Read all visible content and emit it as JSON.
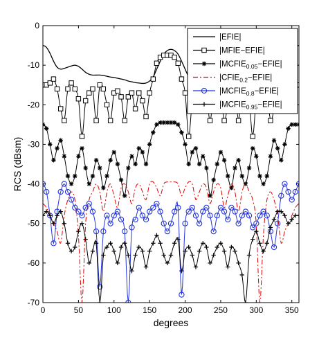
{
  "chart_data": {
    "type": "line",
    "xlabel": "degrees",
    "ylabel": "RCS (dBsm)",
    "xlim": [
      0,
      360
    ],
    "ylim": [
      -70,
      0
    ],
    "xticks": [
      "0",
      "50",
      "100",
      "150",
      "200",
      "250",
      "300",
      "350"
    ],
    "yticks": [
      "0",
      "-10",
      "-20",
      "-30",
      "-40",
      "-50",
      "-60",
      "-70"
    ],
    "grid": false,
    "legend_position": "top-right",
    "series": [
      {
        "name": "|EFIE|",
        "color": "#000000",
        "dash": "solid",
        "marker": "none",
        "x": [
          0,
          5,
          10,
          15,
          20,
          25,
          30,
          35,
          40,
          45,
          50,
          55,
          60,
          65,
          70,
          75,
          80,
          85,
          90,
          95,
          100,
          105,
          110,
          115,
          120,
          125,
          130,
          135,
          140,
          145,
          150,
          155,
          160,
          165,
          170,
          175,
          180,
          185,
          190,
          195,
          200,
          205,
          210,
          215,
          220,
          225,
          230,
          235,
          240,
          245,
          250,
          255,
          260,
          265,
          270,
          275,
          280,
          285,
          290,
          295,
          300,
          305,
          310,
          315,
          320,
          325,
          330,
          335,
          340,
          345,
          350,
          355,
          360
        ],
        "y": [
          -5,
          -5.5,
          -7,
          -9,
          -10.5,
          -11,
          -10.8,
          -10.5,
          -10.2,
          -10,
          -10.3,
          -11,
          -11.8,
          -12.3,
          -12.5,
          -12.5,
          -12.5,
          -12.6,
          -12.8,
          -13,
          -13.1,
          -13.3,
          -13.5,
          -13.7,
          -14,
          -14.2,
          -14.4,
          -14.5,
          -14.6,
          -14.5,
          -14,
          -13,
          -11,
          -9,
          -7.2,
          -6.3,
          -6,
          -6.3,
          -7.2,
          -9,
          -11,
          -13,
          -14,
          -14.5,
          -14.6,
          -14.5,
          -14.4,
          -14.2,
          -14,
          -13.7,
          -13.5,
          -13.3,
          -13.1,
          -13,
          -12.8,
          -12.6,
          -12.5,
          -12.5,
          -12.5,
          -12.3,
          -11.8,
          -11,
          -10.3,
          -10,
          -10.2,
          -10.5,
          -10.8,
          -11,
          -10.5,
          -9,
          -7,
          -5.5,
          -5
        ]
      },
      {
        "name": "|MFIE−EFIE|",
        "color": "#000000",
        "dash": "solid",
        "marker": "square",
        "x": [
          0,
          5,
          10,
          15,
          20,
          25,
          30,
          35,
          40,
          45,
          50,
          55,
          60,
          65,
          70,
          75,
          80,
          85,
          90,
          95,
          100,
          105,
          110,
          115,
          120,
          125,
          130,
          135,
          140,
          145,
          150,
          155,
          160,
          165,
          170,
          175,
          180,
          185,
          190,
          195,
          200,
          205,
          210,
          215,
          220,
          225,
          230,
          235,
          240,
          245,
          250,
          255,
          260,
          265,
          270,
          275,
          280,
          285,
          290,
          295,
          300,
          305,
          310,
          315,
          320,
          325,
          330,
          335,
          340,
          345,
          350,
          355,
          360
        ],
        "y": [
          -15,
          -15,
          -14.5,
          -13.5,
          -16,
          -21,
          -24,
          -16,
          -14.5,
          -16,
          -18.5,
          -28,
          -19,
          -17,
          -16,
          -24,
          -15,
          -16,
          -20,
          -24,
          -17,
          -16.5,
          -18,
          -24,
          -18,
          -17,
          -21,
          -17,
          -19,
          -23,
          -17,
          -13.5,
          -9.5,
          -8,
          -7.5,
          -7.5,
          -7.5,
          -8,
          -9.5,
          -13.5,
          -17,
          -28,
          -19,
          -17,
          -21,
          -17,
          -18,
          -24,
          -18,
          -16.5,
          -17,
          -24,
          -20,
          -16,
          -15,
          -24,
          -16,
          -17,
          -19,
          -28,
          -18.5,
          -16,
          -14.5,
          -16,
          -24,
          -21,
          -16,
          -13.5,
          -14.5,
          -15,
          -15,
          -15,
          -15
        ]
      },
      {
        "name": "|MCFIE",
        "name_sub": "0.05",
        "name_suffix": "−EFIE|",
        "color": "#000000",
        "dash": "solid",
        "marker": "star",
        "x": [
          0,
          5,
          10,
          15,
          20,
          25,
          30,
          35,
          40,
          45,
          50,
          55,
          60,
          65,
          70,
          75,
          80,
          85,
          90,
          95,
          100,
          105,
          110,
          115,
          120,
          125,
          130,
          135,
          140,
          145,
          150,
          155,
          160,
          165,
          170,
          175,
          180,
          185,
          190,
          195,
          200,
          205,
          210,
          215,
          220,
          225,
          230,
          235,
          240,
          245,
          250,
          255,
          260,
          265,
          270,
          275,
          280,
          285,
          290,
          295,
          300,
          305,
          310,
          315,
          320,
          325,
          330,
          335,
          340,
          345,
          350,
          355,
          360
        ],
        "y": [
          -25,
          -26,
          -30,
          -34,
          -31,
          -29,
          -33,
          -38,
          -40,
          -38,
          -33,
          -31,
          -36,
          -40,
          -38,
          -34,
          -36,
          -41,
          -38,
          -34,
          -32,
          -35,
          -39,
          -43,
          -36,
          -33,
          -35,
          -31,
          -32,
          -35,
          -30,
          -27,
          -25,
          -24.5,
          -24.5,
          -24.5,
          -24.5,
          -24.5,
          -25,
          -27,
          -30,
          -35,
          -32,
          -31,
          -35,
          -33,
          -36,
          -43,
          -39,
          -35,
          -32,
          -34,
          -38,
          -41,
          -36,
          -34,
          -38,
          -40,
          -36,
          -31,
          -33,
          -38,
          -40,
          -38,
          -33,
          -29,
          -31,
          -34,
          -30,
          -26,
          -25,
          -25,
          -25
        ]
      },
      {
        "name": "|CFIE",
        "name_sub": "0.2",
        "name_suffix": "−EFIE|",
        "color": "#dd0000",
        "dash": "dashdot",
        "marker": "none",
        "x": [
          0,
          5,
          10,
          15,
          20,
          25,
          30,
          35,
          40,
          45,
          50,
          55,
          60,
          65,
          70,
          75,
          80,
          85,
          90,
          95,
          100,
          105,
          110,
          115,
          120,
          125,
          130,
          135,
          140,
          145,
          150,
          155,
          160,
          165,
          170,
          175,
          180,
          185,
          190,
          195,
          200,
          205,
          210,
          215,
          220,
          225,
          230,
          235,
          240,
          245,
          250,
          255,
          260,
          265,
          270,
          275,
          280,
          285,
          290,
          295,
          300,
          305,
          310,
          315,
          320,
          325,
          330,
          335,
          340,
          345,
          350,
          355,
          360
        ],
        "y": [
          -45,
          -46,
          -48,
          -50,
          -52,
          -55,
          -48,
          -44,
          -42,
          -44,
          -53,
          -70,
          -50,
          -44,
          -42,
          -40,
          -42,
          -47,
          -42,
          -40,
          -43,
          -46,
          -41,
          -40,
          -42,
          -45,
          -41,
          -40,
          -42,
          -44,
          -40,
          -39.5,
          -41,
          -43,
          -40,
          -39.5,
          -39.5,
          -39.5,
          -40,
          -43,
          -41,
          -39.5,
          -40,
          -44,
          -42,
          -40,
          -41,
          -45,
          -42,
          -40,
          -41,
          -46,
          -43,
          -40,
          -42,
          -47,
          -42,
          -40,
          -42,
          -44,
          -50,
          -70,
          -53,
          -44,
          -42,
          -44,
          -48,
          -55,
          -52,
          -50,
          -48,
          -46,
          -45
        ]
      },
      {
        "name": "|MCFIE",
        "name_sub": "0.8",
        "name_suffix": "−EFIE|",
        "color": "#2233dd",
        "dash": "solid",
        "marker": "circle",
        "x": [
          0,
          5,
          10,
          15,
          20,
          25,
          30,
          35,
          40,
          45,
          50,
          55,
          60,
          65,
          70,
          75,
          80,
          85,
          90,
          95,
          100,
          105,
          110,
          115,
          120,
          125,
          130,
          135,
          140,
          145,
          150,
          155,
          160,
          165,
          170,
          175,
          180,
          185,
          190,
          195,
          200,
          205,
          210,
          215,
          220,
          225,
          230,
          235,
          240,
          245,
          250,
          255,
          260,
          265,
          270,
          275,
          280,
          285,
          290,
          295,
          300,
          305,
          310,
          315,
          320,
          325,
          330,
          335,
          340,
          345,
          350,
          355,
          360
        ],
        "y": [
          -40,
          -42,
          -48,
          -55,
          -47,
          -42,
          -40,
          -42,
          -44,
          -46,
          -47,
          -48,
          -46,
          -45,
          -47,
          -52,
          -66,
          -52,
          -48,
          -50,
          -48,
          -47,
          -49,
          -52,
          -70,
          -51,
          -49,
          -46,
          -48,
          -49,
          -47,
          -46,
          -45,
          -47,
          -50,
          -52,
          -50,
          -47,
          -46,
          -68,
          -50,
          -47,
          -46,
          -48,
          -50,
          -47,
          -46,
          -48,
          -52,
          -48,
          -46,
          -47,
          -49,
          -46,
          -47,
          -50,
          -48,
          -47,
          -48,
          -51,
          -50,
          -48,
          -47,
          -48,
          -52,
          -56,
          -50,
          -43,
          -40,
          -42,
          -44,
          -42,
          -40
        ]
      },
      {
        "name": "|MCFIE",
        "name_sub": "0.95",
        "name_suffix": "−EFIE|",
        "color": "#000000",
        "dash": "solid",
        "marker": "plus",
        "x": [
          0,
          5,
          10,
          15,
          20,
          25,
          30,
          35,
          40,
          45,
          50,
          55,
          60,
          65,
          70,
          75,
          80,
          85,
          90,
          95,
          100,
          105,
          110,
          115,
          120,
          125,
          130,
          135,
          140,
          145,
          150,
          155,
          160,
          165,
          170,
          175,
          180,
          185,
          190,
          195,
          200,
          205,
          210,
          215,
          220,
          225,
          230,
          235,
          240,
          245,
          250,
          255,
          260,
          265,
          270,
          275,
          280,
          285,
          290,
          295,
          300,
          305,
          310,
          315,
          320,
          325,
          330,
          335,
          340,
          345,
          350,
          355,
          360
        ],
        "y": [
          -48,
          -47,
          -48,
          -50,
          -48,
          -47,
          -50,
          -55,
          -57,
          -56,
          -52,
          -50,
          -54,
          -60,
          -57,
          -55,
          -70,
          -58,
          -56,
          -55,
          -57,
          -60,
          -56,
          -55,
          -58,
          -62,
          -58,
          -56,
          -57,
          -61,
          -57,
          -55,
          -53,
          -55,
          -58,
          -60,
          -58,
          -55,
          -54,
          -62,
          -57,
          -56,
          -58,
          -61,
          -57,
          -55,
          -56,
          -60,
          -58,
          -56,
          -55,
          -57,
          -61,
          -56,
          -57,
          -60,
          -63,
          -70,
          -58,
          -54,
          -52,
          -55,
          -57,
          -55,
          -51,
          -49,
          -47,
          -47,
          -48,
          -50,
          -49,
          -48,
          -48
        ]
      }
    ]
  }
}
